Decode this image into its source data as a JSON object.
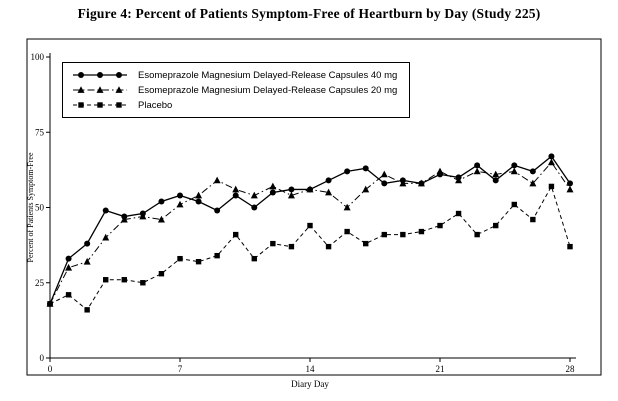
{
  "figure": {
    "title": "Figure 4: Percent of Patients Symptom-Free of Heartburn by Day (Study 225)"
  },
  "chart_data": {
    "type": "line",
    "title": "Figure 4: Percent of Patients Symptom-Free of Heartburn by Day (Study 225)",
    "xlabel": "Diary Day",
    "ylabel": "Percent of Patients Symptom-Free",
    "xlim": [
      0,
      28
    ],
    "ylim": [
      0,
      100
    ],
    "xticks": [
      0,
      7,
      14,
      21,
      28
    ],
    "yticks": [
      0,
      25,
      50,
      75,
      100
    ],
    "grid": false,
    "legend_position": "upper-left",
    "line_color": "#000000",
    "x": [
      0,
      1,
      2,
      3,
      4,
      5,
      6,
      7,
      8,
      9,
      10,
      11,
      12,
      13,
      14,
      15,
      16,
      17,
      18,
      19,
      20,
      21,
      22,
      23,
      24,
      25,
      26,
      27,
      28
    ],
    "series": [
      {
        "name": "Esomeprazole Magnesium Delayed-Release Capsules 40 mg",
        "marker": "circle",
        "line_style": "solid",
        "values": [
          18,
          33,
          38,
          49,
          47,
          48,
          52,
          54,
          52,
          49,
          54,
          50,
          55,
          56,
          56,
          59,
          62,
          63,
          58,
          59,
          58,
          61,
          60,
          64,
          59,
          64,
          62,
          67,
          58
        ]
      },
      {
        "name": "Esomeprazole Magnesium Delayed-Release Capsules 20 mg",
        "marker": "triangle",
        "line_style": "dashdot",
        "values": [
          18,
          30,
          32,
          40,
          46,
          47,
          46,
          51,
          54,
          59,
          56,
          54,
          57,
          54,
          56,
          55,
          50,
          56,
          61,
          58,
          58,
          62,
          59,
          62,
          61,
          62,
          58,
          65,
          56
        ]
      },
      {
        "name": "Placebo",
        "marker": "square",
        "line_style": "dashed",
        "values": [
          18,
          21,
          16,
          26,
          26,
          25,
          28,
          33,
          32,
          34,
          41,
          33,
          38,
          37,
          44,
          37,
          42,
          38,
          41,
          41,
          42,
          44,
          48,
          41,
          44,
          51,
          46,
          57,
          37
        ]
      }
    ]
  }
}
